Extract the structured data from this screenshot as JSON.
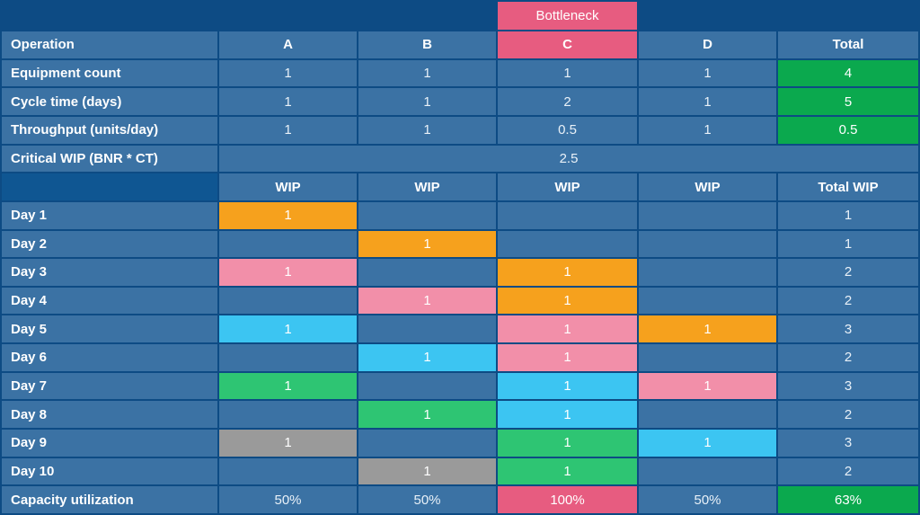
{
  "colors": {
    "navy": "#0d4b84",
    "navy2": "#0f5692",
    "cell": "#3b72a4",
    "rose": "#e75c80",
    "pink": "#f28fa9",
    "orange": "#f6a11d",
    "cyan": "#3cc5f2",
    "emerald": "#2ec573",
    "green": "#0ba94e",
    "gray": "#9a9a9a"
  },
  "bottleneck_label": "Bottleneck",
  "bottleneck_column": "C",
  "header": {
    "operation": "Operation",
    "cols": [
      "A",
      "B",
      "C",
      "D",
      "Total"
    ]
  },
  "metrics": [
    {
      "label": "Equipment count",
      "values": [
        "1",
        "1",
        "1",
        "1"
      ],
      "total": "4"
    },
    {
      "label": "Cycle time (days)",
      "values": [
        "1",
        "1",
        "2",
        "1"
      ],
      "total": "5"
    },
    {
      "label": "Throughput (units/day)",
      "values": [
        "1",
        "1",
        "0.5",
        "1"
      ],
      "total": "0.5"
    }
  ],
  "critical_wip": {
    "label": "Critical WIP (BNR * CT)",
    "value": "2.5"
  },
  "wip_header": {
    "cols": [
      "WIP",
      "WIP",
      "WIP",
      "WIP",
      "Total WIP"
    ]
  },
  "days": [
    {
      "label": "Day 1",
      "cells": [
        {
          "v": "1",
          "c": "orange"
        },
        null,
        null,
        null
      ],
      "total": "1"
    },
    {
      "label": "Day 2",
      "cells": [
        null,
        {
          "v": "1",
          "c": "orange"
        },
        null,
        null
      ],
      "total": "1"
    },
    {
      "label": "Day 3",
      "cells": [
        {
          "v": "1",
          "c": "pink"
        },
        null,
        {
          "v": "1",
          "c": "orange"
        },
        null
      ],
      "total": "2"
    },
    {
      "label": "Day 4",
      "cells": [
        null,
        {
          "v": "1",
          "c": "pink"
        },
        {
          "v": "1",
          "c": "orange"
        },
        null
      ],
      "total": "2"
    },
    {
      "label": "Day 5",
      "cells": [
        {
          "v": "1",
          "c": "cyan"
        },
        null,
        {
          "v": "1",
          "c": "pink"
        },
        {
          "v": "1",
          "c": "orange"
        }
      ],
      "total": "3"
    },
    {
      "label": "Day 6",
      "cells": [
        null,
        {
          "v": "1",
          "c": "cyan"
        },
        {
          "v": "1",
          "c": "pink"
        },
        null
      ],
      "total": "2"
    },
    {
      "label": "Day 7",
      "cells": [
        {
          "v": "1",
          "c": "emerald"
        },
        null,
        {
          "v": "1",
          "c": "cyan"
        },
        {
          "v": "1",
          "c": "pink"
        }
      ],
      "total": "3"
    },
    {
      "label": "Day 8",
      "cells": [
        null,
        {
          "v": "1",
          "c": "emerald"
        },
        {
          "v": "1",
          "c": "cyan"
        },
        null
      ],
      "total": "2"
    },
    {
      "label": "Day 9",
      "cells": [
        {
          "v": "1",
          "c": "gray"
        },
        null,
        {
          "v": "1",
          "c": "emerald"
        },
        {
          "v": "1",
          "c": "cyan"
        }
      ],
      "total": "3"
    },
    {
      "label": "Day 10",
      "cells": [
        null,
        {
          "v": "1",
          "c": "gray"
        },
        {
          "v": "1",
          "c": "emerald"
        },
        null
      ],
      "total": "2"
    }
  ],
  "capacity": {
    "label": "Capacity utilization",
    "values": [
      {
        "v": "50%"
      },
      {
        "v": "50%"
      },
      {
        "v": "100%",
        "c": "rose"
      },
      {
        "v": "50%"
      }
    ],
    "total": {
      "v": "63%",
      "c": "green"
    }
  },
  "chart_data": {
    "type": "table",
    "title": "Bottleneck WIP simulation",
    "columns": [
      "Operation",
      "A",
      "B",
      "C",
      "D",
      "Total"
    ],
    "bottleneck_column": "C",
    "rows": [
      [
        "Equipment count",
        "1",
        "1",
        "1",
        "1",
        "4"
      ],
      [
        "Cycle time (days)",
        "1",
        "1",
        "2",
        "1",
        "5"
      ],
      [
        "Throughput (units/day)",
        "1",
        "1",
        "0.5",
        "1",
        "0.5"
      ],
      [
        "Critical WIP (BNR * CT)",
        "2.5"
      ],
      [
        "",
        "WIP",
        "WIP",
        "WIP",
        "WIP",
        "Total WIP"
      ],
      [
        "Day 1",
        "1",
        "",
        "",
        "",
        "1"
      ],
      [
        "Day 2",
        "",
        "1",
        "",
        "",
        "1"
      ],
      [
        "Day 3",
        "1",
        "",
        "1",
        "",
        "2"
      ],
      [
        "Day 4",
        "",
        "1",
        "1",
        "",
        "2"
      ],
      [
        "Day 5",
        "1",
        "",
        "1",
        "1",
        "3"
      ],
      [
        "Day 6",
        "",
        "1",
        "1",
        "",
        "2"
      ],
      [
        "Day 7",
        "1",
        "",
        "1",
        "1",
        "3"
      ],
      [
        "Day 8",
        "",
        "1",
        "1",
        "",
        "2"
      ],
      [
        "Day 9",
        "1",
        "",
        "1",
        "1",
        "3"
      ],
      [
        "Day 10",
        "",
        "1",
        "1",
        "",
        "2"
      ],
      [
        "Capacity utilization",
        "50%",
        "50%",
        "100%",
        "50%",
        "63%"
      ]
    ]
  }
}
